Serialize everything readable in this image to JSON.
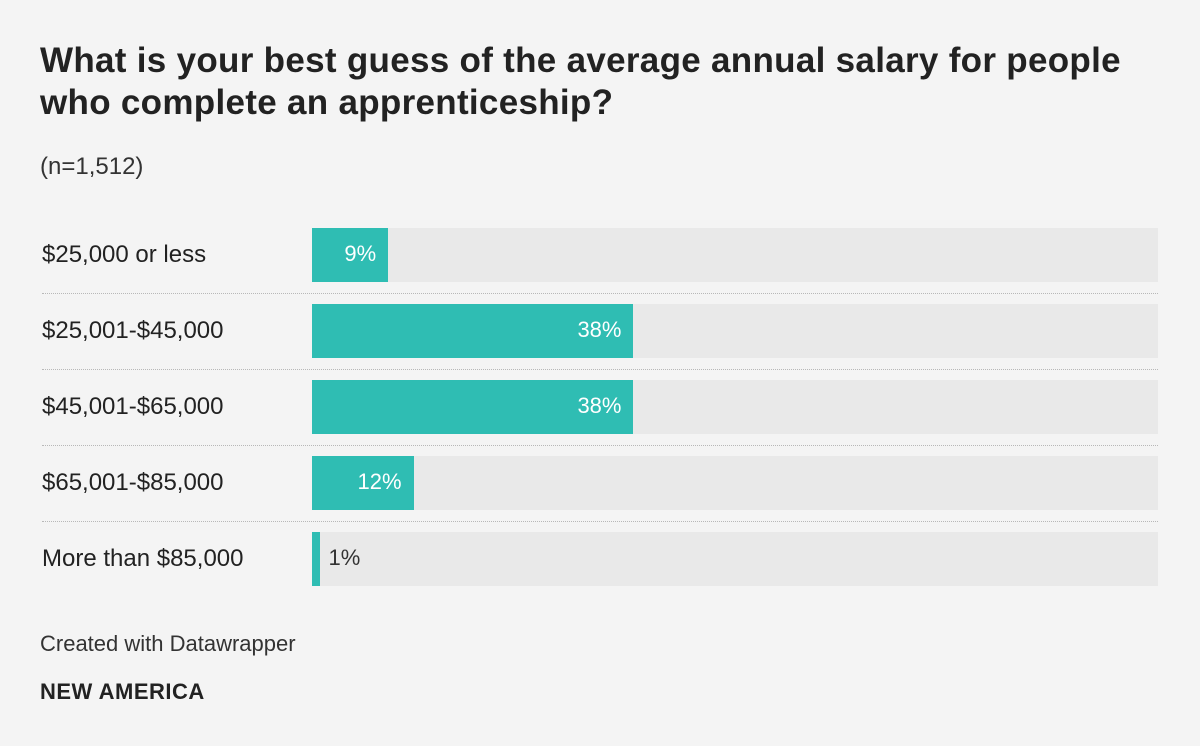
{
  "chart_data": {
    "type": "bar",
    "orientation": "horizontal",
    "title": "What is your best guess of the average annual salary for people who complete an apprenticeship?",
    "subtitle": "(n=1,512)",
    "categories": [
      "$25,000 or less",
      "$25,001-$45,000",
      "$45,001-$65,000",
      "$65,001-$85,000",
      "More than $85,000"
    ],
    "values": [
      9,
      38,
      38,
      12,
      1
    ],
    "value_labels": [
      "9%",
      "38%",
      "38%",
      "12%",
      "1%"
    ],
    "unit": "%",
    "xlim": [
      0,
      100
    ],
    "xlabel": "",
    "ylabel": "",
    "grid": false,
    "colors": {
      "bar": "#2fbdb3",
      "track": "#e9e9e9",
      "background": "#f4f4f4"
    }
  },
  "footer": {
    "credit": "Created with Datawrapper",
    "publisher": "NEW AMERICA"
  }
}
